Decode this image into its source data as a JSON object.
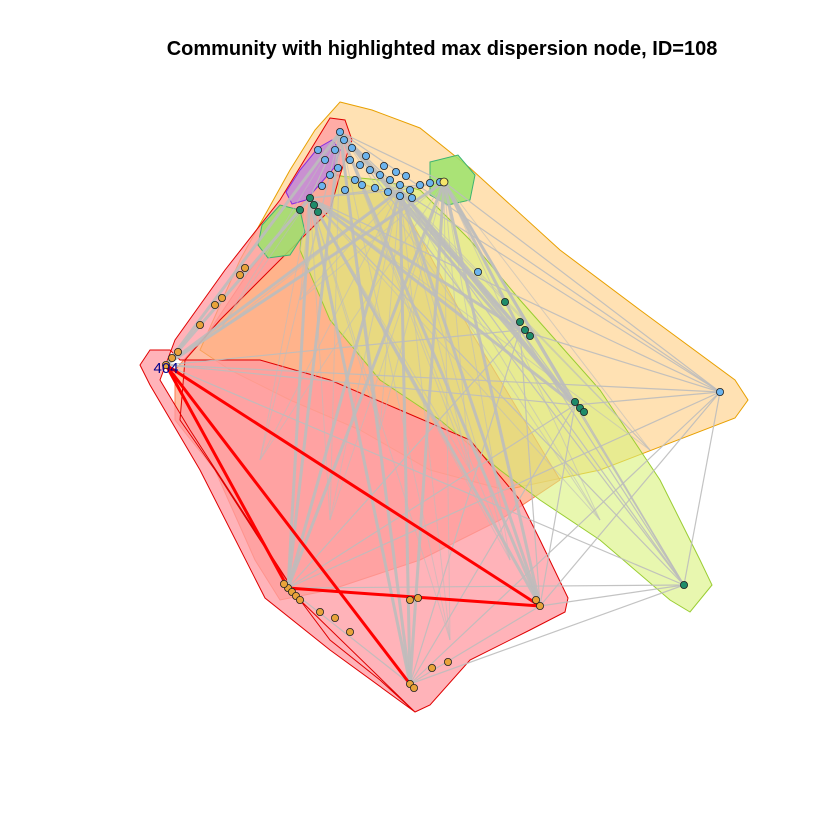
{
  "title": "Community with highlighted max dispersion node, ID=108",
  "highlight_label": "404",
  "colors": {
    "edge": "#bdbdbd",
    "highlight_edge": "#ff0000",
    "node_blue": "#6cb4ee",
    "node_orange": "#e8a33a",
    "node_green": "#1e8b6a",
    "node_yellow": "#f5e56b",
    "label": "#00008b"
  },
  "communities": [
    {
      "name": "orange-hull",
      "fill": "#ffd79a",
      "stroke": "#e8a000"
    },
    {
      "name": "red-hull",
      "fill": "#ff9aa2",
      "stroke": "#e00000"
    },
    {
      "name": "yellowgreen-hull",
      "fill": "#d9f27a",
      "stroke": "#9acd32"
    },
    {
      "name": "salmon-hull",
      "fill": "#ffa07a",
      "stroke": "#ff7f50"
    },
    {
      "name": "green-hull-1",
      "fill": "#9be36b",
      "stroke": "#3cb371"
    },
    {
      "name": "green-hull-2",
      "fill": "#9be36b",
      "stroke": "#3cb371"
    },
    {
      "name": "purple-hull",
      "fill": "#c08bd8",
      "stroke": "#8a2be2"
    }
  ]
}
